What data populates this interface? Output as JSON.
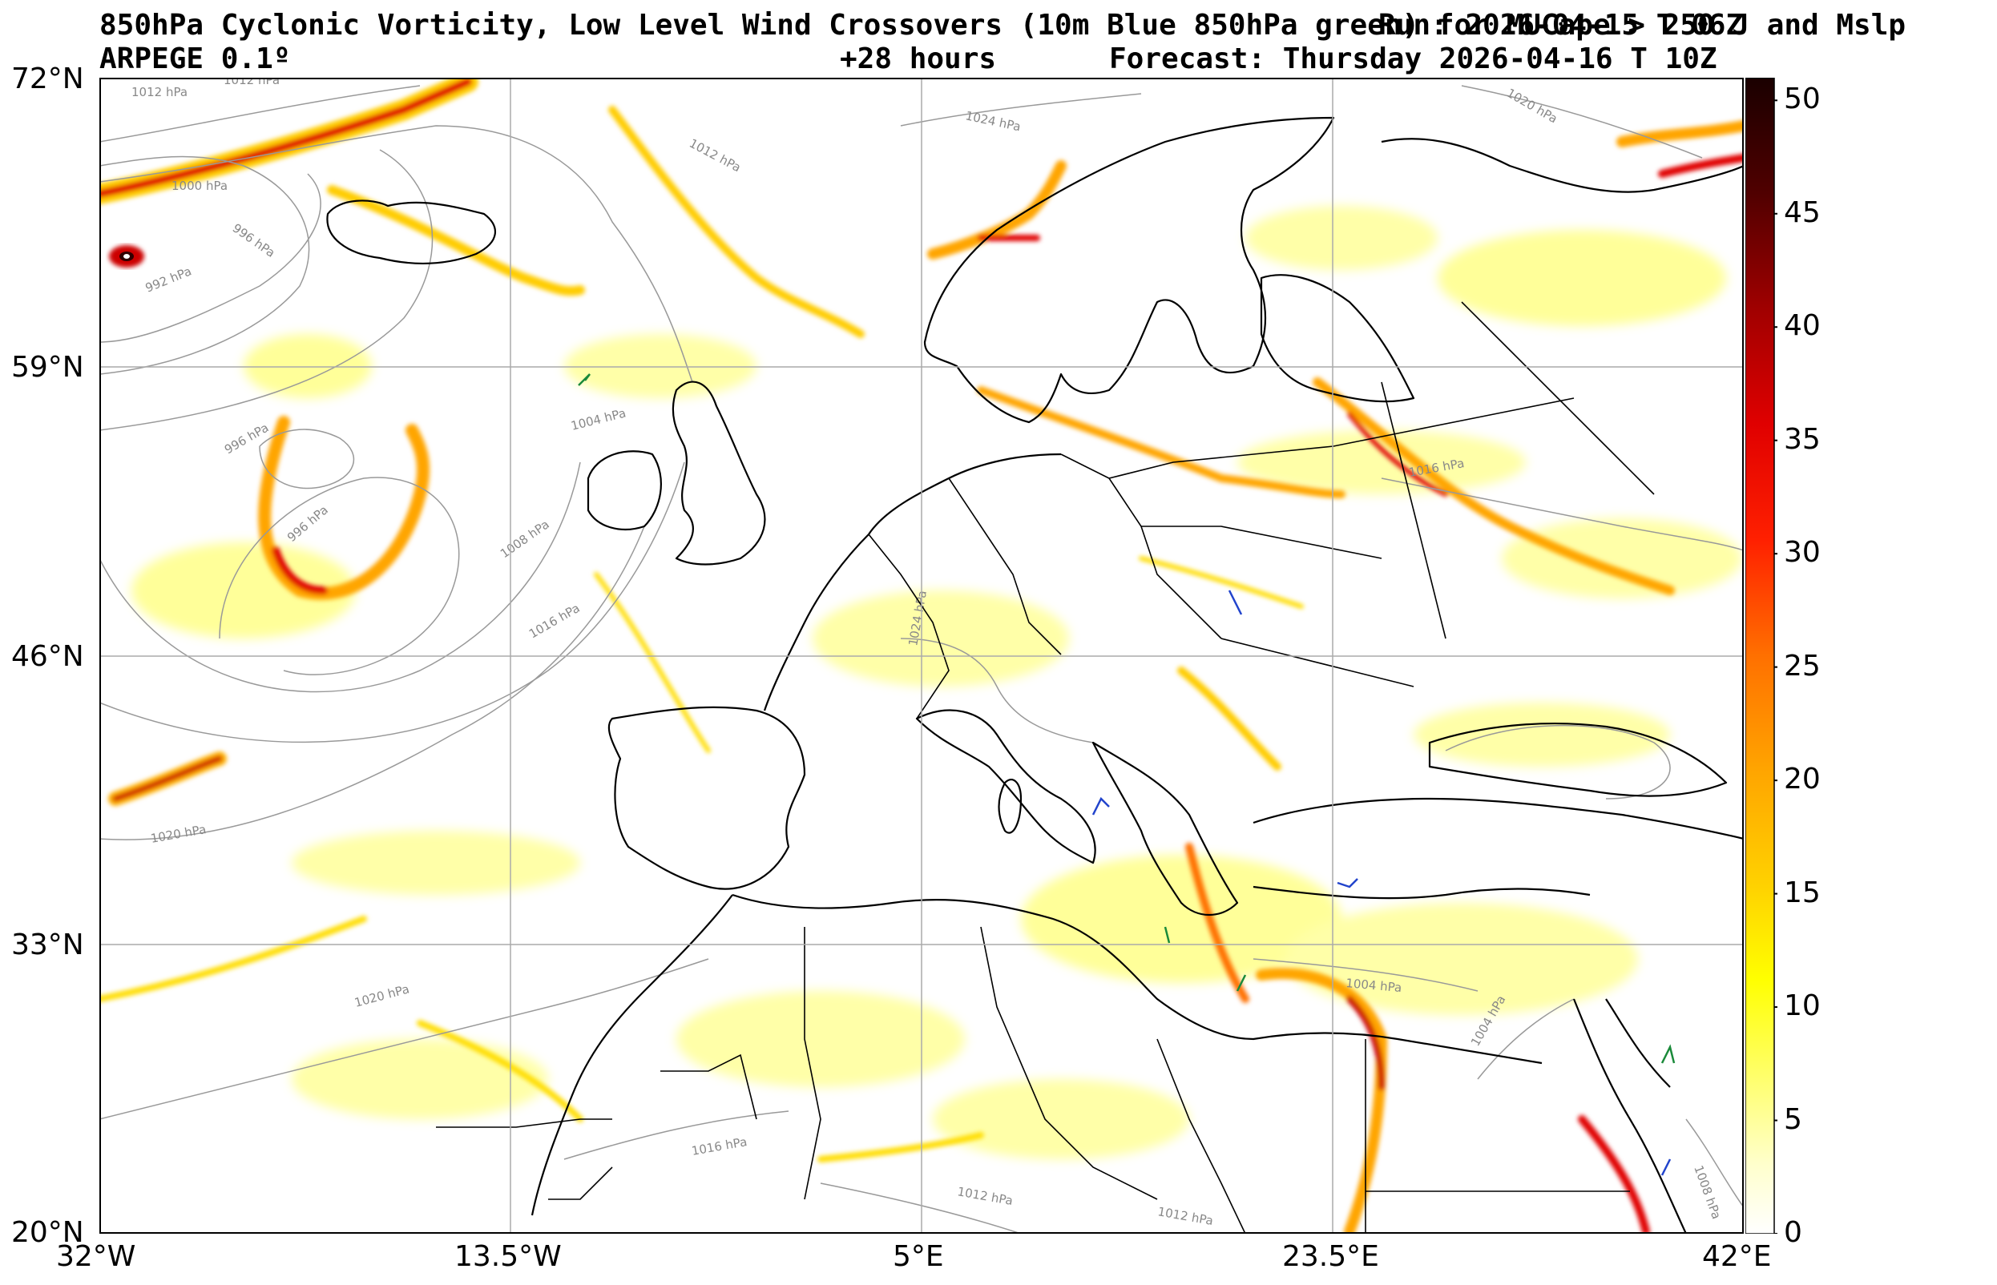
{
  "header": {
    "title_line1": "850hPa Cyclonic Vorticity, Low Level Wind Crossovers (10m Blue 850hPa green) for MUCape > 250 J and Mslp",
    "run_label": "Run: 2026-04-15 T 06Z",
    "model": "ARPEGE 0.1º",
    "lead_time": "+28 hours",
    "forecast": "Forecast: Thursday 2026-04-16 T 10Z"
  },
  "map": {
    "lat_labels": [
      "72°N",
      "59°N",
      "46°N",
      "33°N",
      "20°N"
    ],
    "lon_labels": [
      "32°W",
      "13.5°W",
      "5°E",
      "23.5°E",
      "42°E"
    ],
    "isobar_labels": [
      "1012 hPa",
      "1012 hPa",
      "1024 hPa",
      "1020 hPa",
      "1012 hPa",
      "1000 hPa",
      "996 hPa",
      "992 hPa",
      "1004 hPa",
      "996 hPa",
      "996 hPa",
      "1008 hPa",
      "1016 hPa",
      "1024 hPa",
      "1016 hPa",
      "1020 hPa",
      "1020 hPa",
      "1016 hPa",
      "1012 hPa",
      "1004 hPa",
      "1004 hPa",
      "1008 hPa",
      "1012 hPa"
    ]
  },
  "colorbar": {
    "ticks": [
      "50",
      "45",
      "40",
      "35",
      "30",
      "25",
      "20",
      "15",
      "10",
      "5",
      "0"
    ],
    "min": 0,
    "max": 51,
    "colors": [
      "#ffffff",
      "#ffff99",
      "#ffff00",
      "#ffd200",
      "#ffa500",
      "#ff7000",
      "#ff3000",
      "#ff0000",
      "#cc0000",
      "#800000",
      "#2a0000"
    ]
  }
}
